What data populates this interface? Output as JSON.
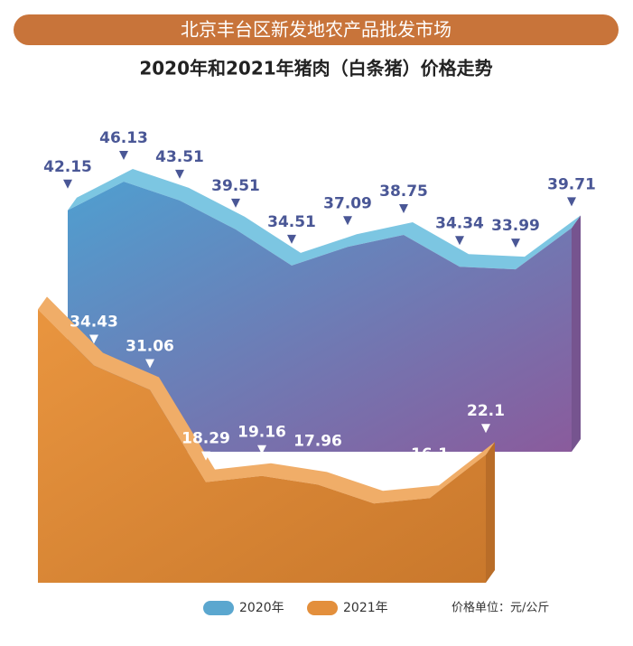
{
  "chart_data": {
    "type": "area",
    "title": "北京丰台区新发地农产品批发市场",
    "subtitle": "2020年和2021年猪肉（白条猪）价格走势",
    "unit_note": "价格单位：元/公斤",
    "categories": [
      null,
      null,
      null,
      null,
      null,
      null,
      null,
      null,
      null,
      null
    ],
    "series": [
      {
        "name": "2020年",
        "color": "#5ba7cf",
        "values": [
          42.15,
          46.13,
          43.51,
          39.51,
          34.51,
          37.09,
          38.75,
          34.34,
          33.99,
          39.71
        ]
      },
      {
        "name": "2021年",
        "color": "#e38f3c",
        "values": [
          42.21,
          34.43,
          31.06,
          18.29,
          19.16,
          17.96,
          15.34,
          16.1,
          22.1,
          null
        ]
      }
    ]
  }
}
